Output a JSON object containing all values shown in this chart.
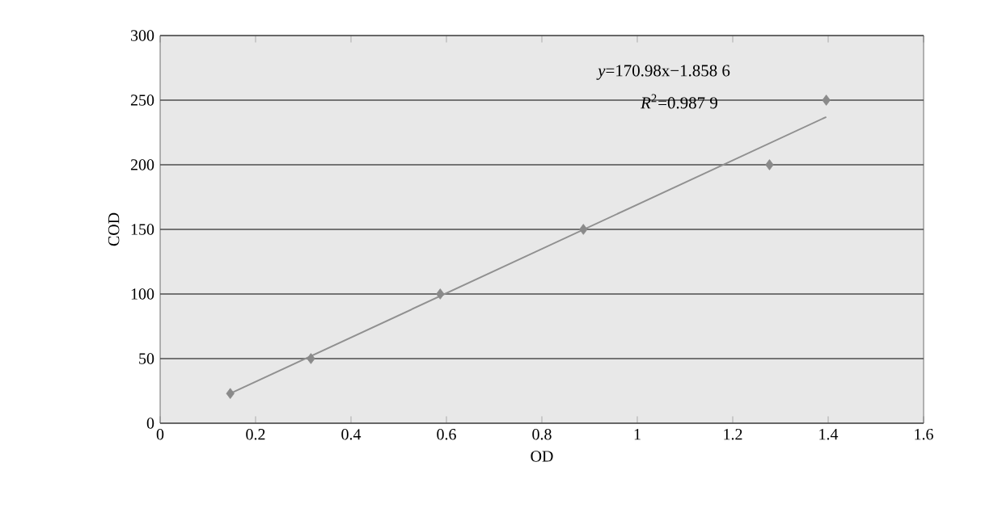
{
  "chart_data": {
    "type": "scatter",
    "xlabel": "OD",
    "ylabel": "COD",
    "series": [
      {
        "type": "scatter",
        "color": "#8a8a8a",
        "x": [
          0.147,
          0.316,
          0.587,
          0.887,
          1.277,
          1.396
        ],
        "values": [
          23,
          50,
          100,
          150,
          200,
          250
        ],
        "marker": "diamond"
      },
      {
        "type": "line",
        "color": "#909090",
        "x": [
          0.147,
          1.396
        ],
        "values": [
          23,
          237
        ]
      }
    ],
    "xlim": [
      0,
      1.6
    ],
    "ylim": [
      0,
      300
    ],
    "xticks": [
      0,
      0.2,
      0.4,
      0.6,
      0.8,
      1,
      1.2,
      1.4,
      1.6
    ],
    "yticks": [
      0,
      50,
      100,
      150,
      200,
      250,
      300
    ],
    "grid": "y",
    "annotations": [
      "*y*=170.98x−1.858 6",
      "*R*$^{2}$=0.987 9"
    ]
  }
}
